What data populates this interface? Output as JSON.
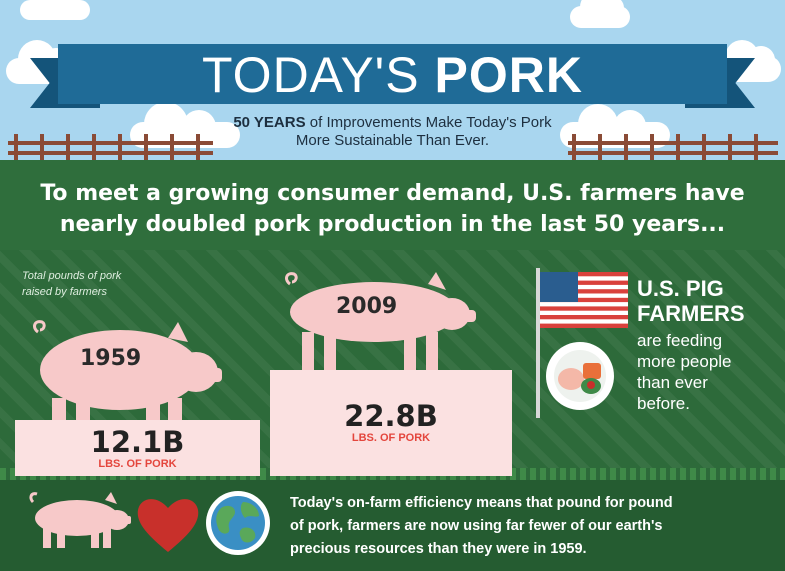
{
  "header": {
    "title_light": "TODAY'S",
    "title_bold": "PORK",
    "subtitle_line1_bold": "50 YEARS",
    "subtitle_line1_rest": " of Improvements Make Today's Pork",
    "subtitle_line2": "More Sustainable Than Ever."
  },
  "headline": {
    "line1": "To meet a growing consumer demand, U.S. farmers have",
    "line2": "nearly doubled pork production in the last 50 years..."
  },
  "caption": {
    "line1": "Total pounds of pork",
    "line2": "raised by farmers"
  },
  "comparison": [
    {
      "year": "1959",
      "value": "12.1B",
      "unit": "LBS. OF PORK",
      "pounds_billion": 12.1
    },
    {
      "year": "2009",
      "value": "22.8B",
      "unit": "LBS. OF PORK",
      "pounds_billion": 22.8
    }
  ],
  "farmers": {
    "title_line1": "U.S. PIG",
    "title_line2": "FARMERS",
    "body_lines": [
      "are feeding",
      "more people",
      "than ever",
      "before."
    ]
  },
  "bottom": {
    "lines": [
      "Today's on-farm efficiency means that pound for pound",
      "of pork, farmers are now using far fewer of our earth's",
      "precious resources than they were in 1959."
    ]
  },
  "icons": [
    "cloud-icon",
    "fence-icon",
    "pig-icon",
    "us-flag-icon",
    "plate-icon",
    "heart-icon",
    "globe-icon"
  ],
  "colors": {
    "sky": "#a9d6ef",
    "banner": "#1f6b97",
    "grass": "#2d6a3a",
    "pig_pink": "#f7c9c9",
    "box_pink": "#fbe1e1",
    "accent_red": "#e4463d",
    "fence": "#8a4b36"
  }
}
